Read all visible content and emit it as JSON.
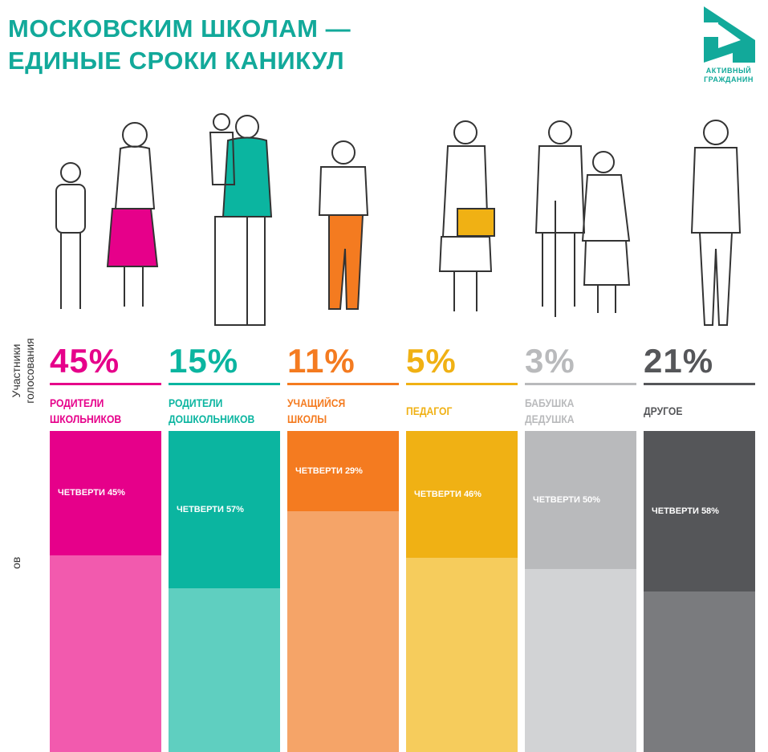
{
  "title": [
    "МОСКОВСКИМ ШКОЛАМ —",
    "ЕДИНЫЕ СРОКИ КАНИКУЛ"
  ],
  "logo": {
    "line1": "АКТИВНЫЙ",
    "line2": "ГРАЖДАНИН",
    "color": "#12a99a"
  },
  "side_labels": {
    "participants": [
      "Участники",
      "голосования"
    ],
    "cut": "ов"
  },
  "chart_data": {
    "type": "bar",
    "title": "МОСКОВСКИМ ШКОЛАМ — ЕДИНЫЕ СРОКИ КАНИКУЛ",
    "categories": [
      "РОДИТЕЛИ ШКОЛЬНИКОВ",
      "РОДИТЕЛИ ДОШКОЛЬНИКОВ",
      "УЧАЩИЙСЯ ШКОЛЫ",
      "ПЕДАГОГ",
      "БАБУШКА ДЕДУШКА",
      "ДРУГОЕ"
    ],
    "groups": [
      {
        "pct": "45%",
        "label": [
          "РОДИТЕЛИ",
          "ШКОЛЬНИКОВ"
        ],
        "color": "#e6008a",
        "light": "#f25aae",
        "quarters": 45,
        "quarters_label": "ЧЕТВЕРТИ 45%"
      },
      {
        "pct": "15%",
        "label": [
          "РОДИТЕЛИ",
          "ДОШКОЛЬНИКОВ"
        ],
        "color": "#0bb5a0",
        "light": "#5fcfc0",
        "quarters": 57,
        "quarters_label": "ЧЕТВЕРТИ 57%"
      },
      {
        "pct": "11%",
        "label": [
          "УЧАЩИЙСЯ",
          "ШКОЛЫ"
        ],
        "color": "#f47b20",
        "light": "#f5a468",
        "quarters": 29,
        "quarters_label": "ЧЕТВЕРТИ 29%"
      },
      {
        "pct": "5%",
        "label": [
          "ПЕДАГОГ"
        ],
        "color": "#f0b114",
        "light": "#f6cc5c",
        "quarters": 46,
        "quarters_label": "ЧЕТВЕРТИ 46%"
      },
      {
        "pct": "3%",
        "label": [
          "БАБУШКА",
          "ДЕДУШКА"
        ],
        "color": "#b9babc",
        "light": "#d2d3d5",
        "quarters": 50,
        "quarters_label": "ЧЕТВЕРТИ 50%"
      },
      {
        "pct": "21%",
        "label": [
          "ДРУГОЕ"
        ],
        "color": "#555659",
        "light": "#7a7b7e",
        "quarters": 58,
        "quarters_label": "ЧЕТВЕРТИ 58%"
      }
    ]
  }
}
